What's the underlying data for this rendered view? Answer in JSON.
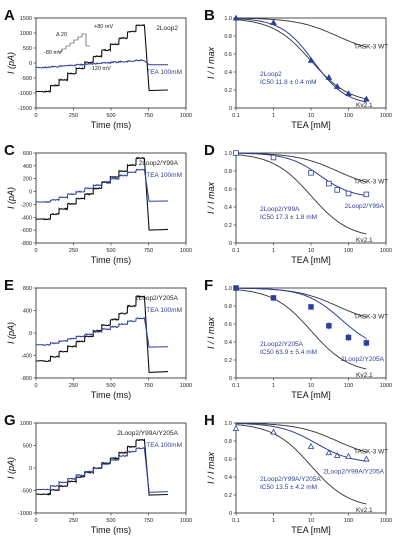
{
  "colors": {
    "black": "#111111",
    "blue": "#2c3f9a",
    "wt": "#333333"
  },
  "chart_data": [
    {
      "panel": "A",
      "type": "line",
      "title": "2Loop2",
      "xlabel": "Time (ms)",
      "ylabel": "I (pA)",
      "xlim": [
        0,
        1000
      ],
      "ylim": [
        -1500,
        1500
      ],
      "xticks": [
        "0",
        "250",
        "500",
        "750",
        "1000"
      ],
      "yticks": [
        "-1500",
        "-1000",
        "-500",
        "0",
        "500",
        "1000",
        "1500"
      ],
      "series_label": "TEA 100mM",
      "protocol_labels": [
        "+80 mV",
        "Δ 20",
        "-80 mV",
        "-120 mV"
      ],
      "steps_black": [
        -950,
        -750,
        -560,
        -350,
        -180,
        20,
        220,
        430,
        630,
        830,
        1050,
        1250
      ],
      "steps_blue": [
        -145,
        -120,
        -100,
        -78,
        -58,
        -38,
        -18,
        5,
        25,
        48,
        70,
        90
      ],
      "tail_black": -920,
      "tail_blue": -60
    },
    {
      "panel": "B",
      "type": "line",
      "xlabel": "TEA [mM]",
      "ylabel": "I / I max",
      "xlim": [
        0.1,
        1000
      ],
      "ylim": [
        0,
        1.0
      ],
      "xscale": "log",
      "xticks": [
        "0.1",
        "1",
        "10",
        "100",
        "1000"
      ],
      "yticks": [
        "0",
        "0.2",
        "0.4",
        "0.6",
        "0.8",
        "1.0"
      ],
      "curves": [
        {
          "name": "TASK-3 WT",
          "ic50": 50,
          "hill": 0.8,
          "floor": 0.6
        },
        {
          "name": "Kv2.1",
          "ic50": 10,
          "hill": 0.85,
          "floor": 0.05
        }
      ],
      "fit": {
        "ic50": 11.8,
        "hill": 1.0,
        "floor": 0.03
      },
      "points": [
        {
          "x": 0.1,
          "y": 1.0,
          "err": 0
        },
        {
          "x": 1,
          "y": 0.95,
          "err": 0.01
        },
        {
          "x": 10,
          "y": 0.53,
          "err": 0.02
        },
        {
          "x": 30,
          "y": 0.34,
          "err": 0.02
        },
        {
          "x": 50,
          "y": 0.24,
          "err": 0.02
        },
        {
          "x": 100,
          "y": 0.16,
          "err": 0.02
        },
        {
          "x": 300,
          "y": 0.1,
          "err": 0.01
        }
      ],
      "marker": "filled-triangle",
      "label_lines": [
        "2Loop2",
        "IC50 11.8 ± 0.4 mM"
      ],
      "wt_label": "TASK-3 WT",
      "kv_label": "Kv2.1",
      "mut_label": ""
    },
    {
      "panel": "C",
      "type": "line",
      "title": "2Loop2/Y99A",
      "xlabel": "Time (ms)",
      "ylabel": "I (pA)",
      "xlim": [
        0,
        1000
      ],
      "ylim": [
        -800,
        600
      ],
      "xticks": [
        "0",
        "250",
        "500",
        "750",
        "1000"
      ],
      "yticks": [
        "-800",
        "-600",
        "-400",
        "-200",
        "0",
        "200",
        "400",
        "600"
      ],
      "series_label": "TEA 100mM",
      "steps_black": [
        -430,
        -350,
        -270,
        -190,
        -110,
        -40,
        50,
        140,
        230,
        320,
        410,
        520
      ],
      "steps_blue": [
        -160,
        -130,
        -90,
        -40,
        0,
        50,
        100,
        150,
        200,
        250,
        300,
        340
      ],
      "tail_black": -600,
      "tail_blue": -150
    },
    {
      "panel": "D",
      "type": "line",
      "xlabel": "TEA [mM]",
      "ylabel": "I / I max",
      "xlim": [
        0.1,
        1000
      ],
      "ylim": [
        0,
        1.0
      ],
      "xscale": "log",
      "xticks": [
        "0.1",
        "1",
        "10",
        "100",
        "1000"
      ],
      "yticks": [
        "0",
        "0.2",
        "0.4",
        "0.6",
        "0.8",
        "1.0"
      ],
      "curves": [
        {
          "name": "TASK-3 WT",
          "ic50": 50,
          "hill": 0.8,
          "floor": 0.6
        },
        {
          "name": "Kv2.1",
          "ic50": 10,
          "hill": 0.85,
          "floor": 0.05
        }
      ],
      "fit": {
        "ic50": 17.3,
        "hill": 1.0,
        "floor": 0.5
      },
      "points": [
        {
          "x": 0.1,
          "y": 1.0,
          "err": 0
        },
        {
          "x": 1,
          "y": 0.95,
          "err": 0.03
        },
        {
          "x": 10,
          "y": 0.78,
          "err": 0.02
        },
        {
          "x": 30,
          "y": 0.66,
          "err": 0.02
        },
        {
          "x": 50,
          "y": 0.59,
          "err": 0.02
        },
        {
          "x": 100,
          "y": 0.55,
          "err": 0.02
        },
        {
          "x": 300,
          "y": 0.54,
          "err": 0.02
        }
      ],
      "marker": "open-square",
      "label_lines": [
        "2Loop2/Y99A",
        "IC50 17.3 ± 1.8 mM"
      ],
      "wt_label": "TASK-3 WT",
      "kv_label": "Kv2.1",
      "mut_label": "2Loop2/Y99A"
    },
    {
      "panel": "E",
      "type": "line",
      "title": "2Loop2/Y205A",
      "xlabel": "Time (ms)",
      "ylabel": "I (pA)",
      "xlim": [
        0,
        1000
      ],
      "ylim": [
        -800,
        800
      ],
      "xticks": [
        "0",
        "250",
        "500",
        "750",
        "1000"
      ],
      "yticks": [
        "-800",
        "-400",
        "0",
        "400",
        "800"
      ],
      "series_label": "TEA 100mM",
      "steps_black": [
        -500,
        -420,
        -330,
        -240,
        -150,
        -60,
        40,
        140,
        240,
        350,
        480,
        650
      ],
      "steps_blue": [
        -210,
        -180,
        -140,
        -100,
        -60,
        -20,
        20,
        70,
        110,
        160,
        210,
        260
      ],
      "tail_black": -700,
      "tail_blue": -250
    },
    {
      "panel": "F",
      "type": "line",
      "xlabel": "TEA [mM]",
      "ylabel": "I / I max",
      "xlim": [
        0.1,
        1000
      ],
      "ylim": [
        0,
        1.0
      ],
      "xscale": "log",
      "xticks": [
        "0.1",
        "1",
        "10",
        "100",
        "1000"
      ],
      "yticks": [
        "0",
        "0.2",
        "0.4",
        "0.6",
        "0.8",
        "1.0"
      ],
      "curves": [
        {
          "name": "TASK-3 WT",
          "ic50": 50,
          "hill": 0.8,
          "floor": 0.6
        },
        {
          "name": "Kv2.1",
          "ic50": 10,
          "hill": 0.85,
          "floor": 0.05
        }
      ],
      "fit": {
        "ic50": 63.9,
        "hill": 0.9,
        "floor": 0.3
      },
      "points": [
        {
          "x": 0.1,
          "y": 1.0,
          "err": 0
        },
        {
          "x": 1,
          "y": 0.89,
          "err": 0.03
        },
        {
          "x": 10,
          "y": 0.79,
          "err": 0.03
        },
        {
          "x": 30,
          "y": 0.58,
          "err": 0.04
        },
        {
          "x": 100,
          "y": 0.45,
          "err": 0.04
        },
        {
          "x": 300,
          "y": 0.39,
          "err": 0.04
        }
      ],
      "marker": "filled-square",
      "label_lines": [
        "2Loop2/Y205A",
        "IC50 63.9 ± 5.4 mM"
      ],
      "wt_label": "TASK-3 WT",
      "kv_label": "Kv2.1",
      "mut_label": "2Loop2/Y205A"
    },
    {
      "panel": "G",
      "type": "line",
      "title": "2Loop2/Y99A/Y205A",
      "xlabel": "Time (ms)",
      "ylabel": "I (pA)",
      "xlim": [
        0,
        1000
      ],
      "ylim": [
        -1000,
        1000
      ],
      "xticks": [
        "0",
        "250",
        "500",
        "750",
        "1000"
      ],
      "yticks": [
        "-1000",
        "-500",
        "0",
        "500",
        "1000"
      ],
      "series_label": "TEA 100mM",
      "steps_black": [
        -580,
        -490,
        -400,
        -300,
        -200,
        -100,
        0,
        110,
        220,
        340,
        470,
        620
      ],
      "steps_blue": [
        -480,
        -400,
        -320,
        -240,
        -160,
        -80,
        0,
        90,
        180,
        270,
        360,
        440
      ],
      "tail_black": -600,
      "tail_blue": -540
    },
    {
      "panel": "H",
      "type": "line",
      "xlabel": "TEA [mM]",
      "ylabel": "I / I max",
      "xlim": [
        0.1,
        1000
      ],
      "ylim": [
        0,
        1.0
      ],
      "xscale": "log",
      "xticks": [
        "0.1",
        "1",
        "10",
        "100",
        "1000"
      ],
      "yticks": [
        "0",
        "0.2",
        "0.4",
        "0.6",
        "0.8",
        "1.0"
      ],
      "curves": [
        {
          "name": "TASK-3 WT",
          "ic50": 50,
          "hill": 0.8,
          "floor": 0.6
        },
        {
          "name": "Kv2.1",
          "ic50": 10,
          "hill": 0.85,
          "floor": 0.05
        }
      ],
      "fit": {
        "ic50": 13.5,
        "hill": 0.9,
        "floor": 0.55
      },
      "points": [
        {
          "x": 0.1,
          "y": 0.94,
          "err": 0
        },
        {
          "x": 1,
          "y": 0.9,
          "err": 0.02
        },
        {
          "x": 10,
          "y": 0.74,
          "err": 0.02
        },
        {
          "x": 30,
          "y": 0.67,
          "err": 0.02
        },
        {
          "x": 50,
          "y": 0.64,
          "err": 0.02
        },
        {
          "x": 100,
          "y": 0.63,
          "err": 0.02
        },
        {
          "x": 300,
          "y": 0.6,
          "err": 0.02
        }
      ],
      "marker": "open-triangle",
      "label_lines": [
        "2Loop2/Y99A/Y205A",
        "IC50 13.5 ± 4.2 mM"
      ],
      "wt_label": "TASK-3 WT",
      "kv_label": "Kv2.1",
      "mut_label": "2Loop2/Y99A/Y205A"
    }
  ]
}
